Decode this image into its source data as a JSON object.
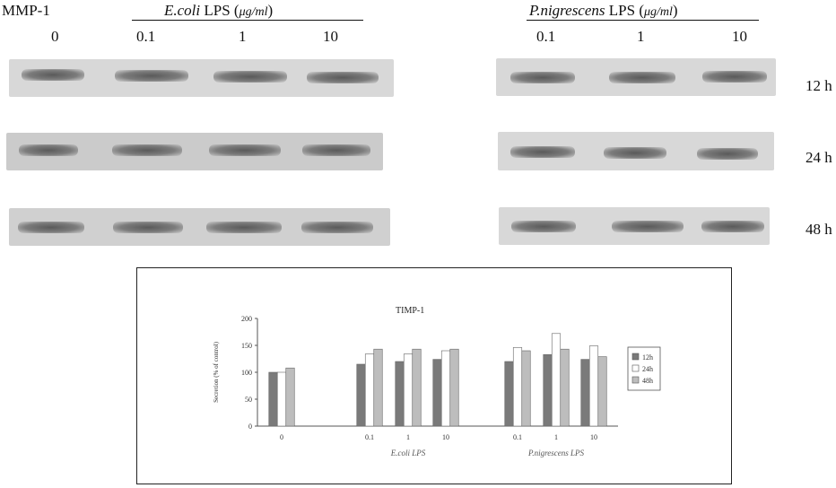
{
  "blot": {
    "protein_label": "MMP-1",
    "ecoli_header": {
      "species": "E.coli",
      "rest": " LPS (",
      "unit": "μg/ml",
      "close": ")"
    },
    "pnig_header": {
      "species": "P.nigrescens",
      "rest": " LPS (",
      "unit": "μg/ml",
      "close": ")"
    },
    "ecoli_doses": [
      "0",
      "0.1",
      "1",
      "10"
    ],
    "pnig_doses": [
      "0.1",
      "1",
      "10"
    ],
    "time_labels": [
      "12 h",
      "24 h",
      "48 h"
    ]
  },
  "chart_data": {
    "type": "bar",
    "title": "TIMP-1",
    "ylabel": "Secretion (% of control)",
    "ylim": [
      0,
      200
    ],
    "yticks": [
      0,
      50,
      100,
      150,
      200
    ],
    "categories": [
      "0",
      "0.1",
      "1",
      "10",
      "0.1",
      "1",
      "10"
    ],
    "group_labels": [
      "E.coli LPS",
      "P.nigrescens LPS"
    ],
    "series": [
      {
        "name": "12h",
        "color": "#7a7a7a",
        "values": [
          100,
          115,
          120,
          124,
          120,
          133,
          124
        ]
      },
      {
        "name": "24h",
        "color": "#ffffff",
        "values": [
          100,
          134,
          134,
          140,
          146,
          172,
          149
        ]
      },
      {
        "name": "48h",
        "color": "#bdbdbd",
        "values": [
          108,
          143,
          143,
          143,
          140,
          143,
          129
        ]
      }
    ],
    "legend_position": "right",
    "grid": false
  }
}
